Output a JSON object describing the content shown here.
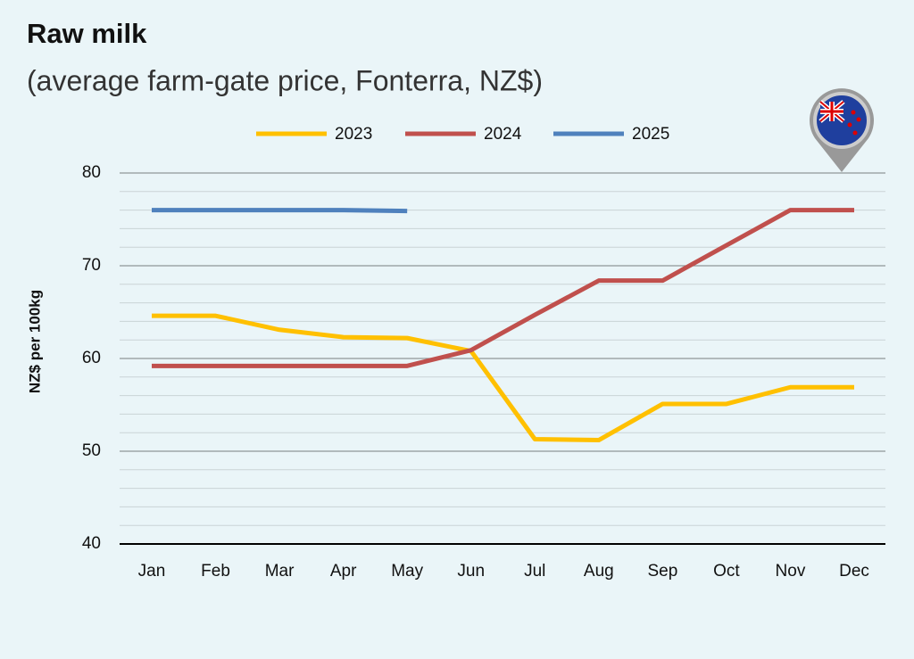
{
  "chart_data": {
    "type": "line",
    "title": "Raw milk",
    "subtitle": "(average farm-gate price, Fonterra, NZ$)",
    "y_label": "NZ$ per 100kg",
    "categories": [
      "Jan",
      "Feb",
      "Mar",
      "Apr",
      "May",
      "Jun",
      "Jul",
      "Aug",
      "Sep",
      "Oct",
      "Nov",
      "Dec"
    ],
    "series": [
      {
        "name": "2023",
        "color": "#ffc000",
        "values": [
          64.6,
          64.6,
          63.1,
          62.3,
          62.2,
          60.8,
          51.3,
          51.2,
          55.1,
          55.1,
          56.9,
          56.9
        ]
      },
      {
        "name": "2024",
        "color": "#c0504d",
        "values": [
          59.2,
          59.2,
          59.2,
          59.2,
          59.2,
          60.9,
          64.7,
          68.4,
          68.4,
          72.2,
          76,
          76
        ]
      },
      {
        "name": "2025",
        "color": "#4f81bd",
        "values": [
          76,
          76,
          76,
          76,
          75.9,
          null,
          null,
          null,
          null,
          null,
          null,
          null
        ]
      }
    ],
    "ylim": [
      40,
      80
    ],
    "yticks": [
      40,
      50,
      60,
      70,
      80
    ],
    "minor_grid_step": 2,
    "grid": true,
    "legend": "top"
  }
}
